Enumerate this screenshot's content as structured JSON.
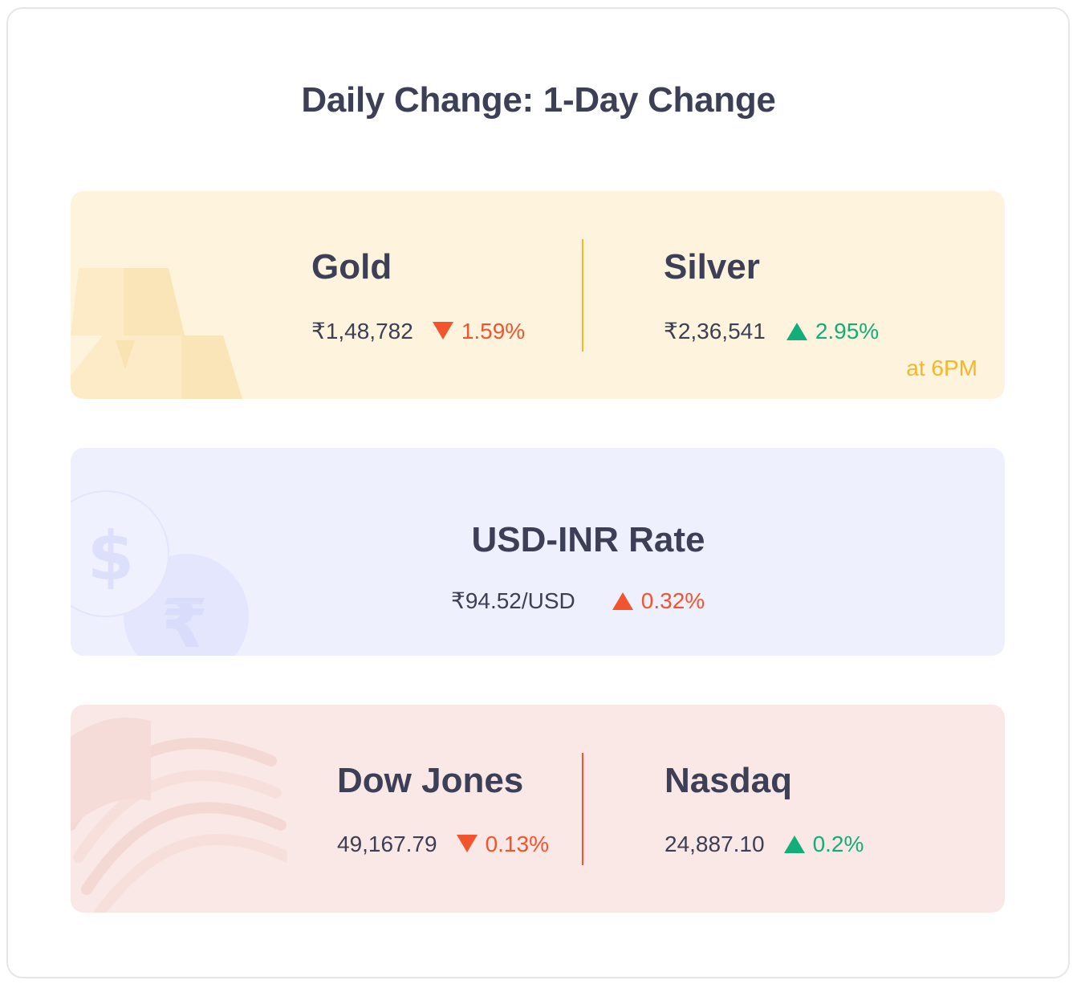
{
  "title": "Daily Change: 1-Day Change",
  "colors": {
    "down": "#f2542d",
    "up": "#13ad7a",
    "note": "#f6b62c",
    "text": "#3c3f55"
  },
  "metals": {
    "gold": {
      "name": "Gold",
      "price": "₹1,48,782",
      "direction": "down",
      "change": "1.59%"
    },
    "silver": {
      "name": "Silver",
      "price": "₹2,36,541",
      "direction": "up",
      "change": "2.95%"
    },
    "note": "at 6PM"
  },
  "fx": {
    "name": "USD-INR Rate",
    "price": "₹94.52/USD",
    "direction": "up",
    "change": "0.32%"
  },
  "indices": {
    "dow": {
      "name": "Dow Jones",
      "price": "49,167.79",
      "direction": "down",
      "change": "0.13%"
    },
    "nasdaq": {
      "name": "Nasdaq",
      "price": "24,887.10",
      "direction": "up",
      "change": "0.2%"
    }
  }
}
